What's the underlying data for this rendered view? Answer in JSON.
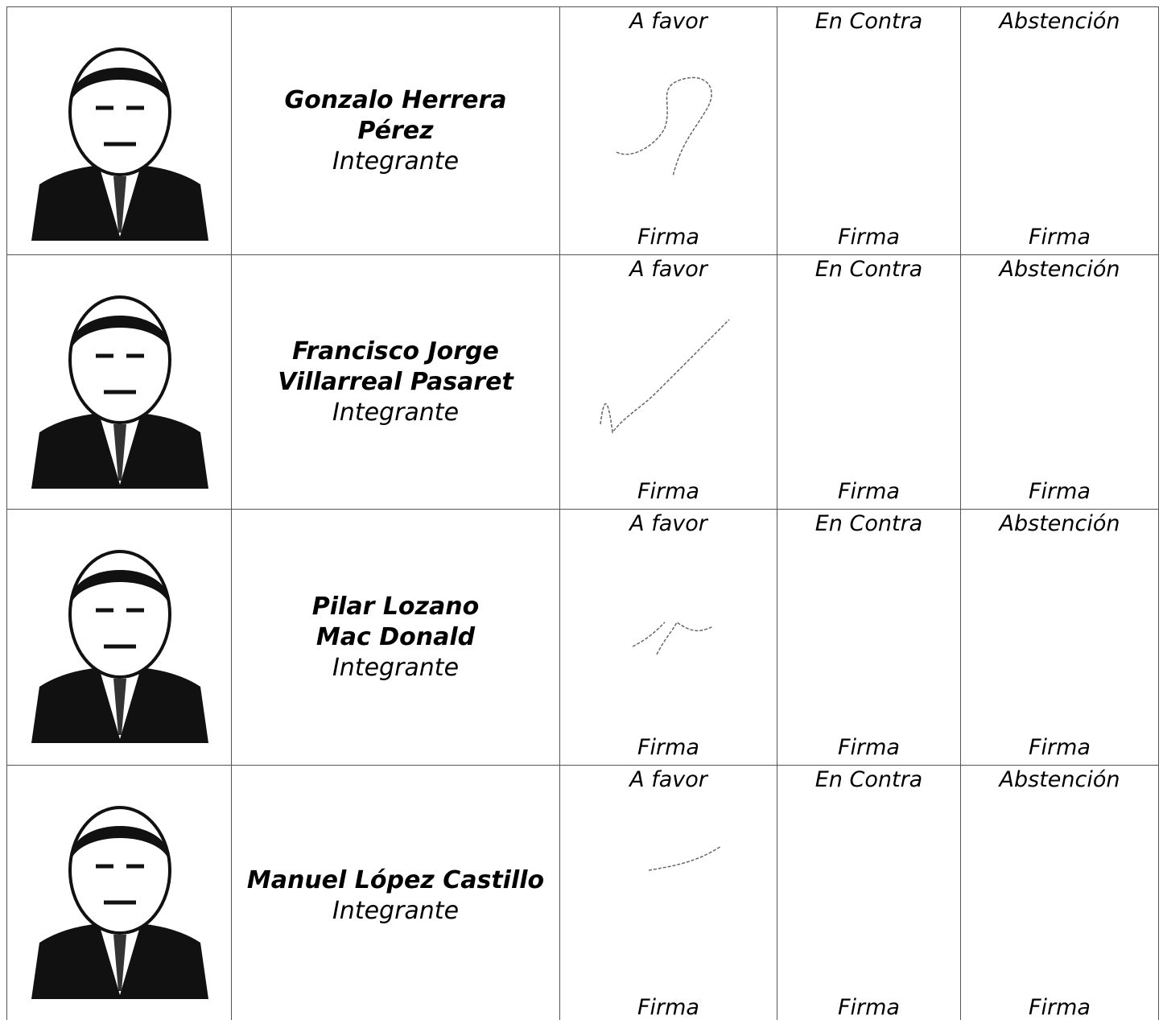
{
  "rows": [
    {
      "name": [
        "Gonzalo Herrera",
        "Pérez"
      ],
      "role": "Integrante",
      "votes": [
        {
          "label": "A favor",
          "sign": "Firma"
        },
        {
          "label": "En Contra",
          "sign": "Firma"
        },
        {
          "label": "Abstención",
          "sign": "Firma"
        }
      ]
    },
    {
      "name": [
        "Francisco Jorge",
        "Villarreal Pasaret"
      ],
      "role": "Integrante",
      "votes": [
        {
          "label": "A favor",
          "sign": "Firma"
        },
        {
          "label": "En Contra",
          "sign": "Firma"
        },
        {
          "label": "Abstención",
          "sign": "Firma"
        }
      ]
    },
    {
      "name": [
        "Pilar Lozano",
        "Mac Donald"
      ],
      "role": "Integrante",
      "votes": [
        {
          "label": "A favor",
          "sign": "Firma"
        },
        {
          "label": "En Contra",
          "sign": "Firma"
        },
        {
          "label": "Abstención",
          "sign": "Firma"
        }
      ]
    },
    {
      "name": [
        "Manuel López Castillo"
      ],
      "role": "Integrante",
      "votes": [
        {
          "label": "A favor",
          "sign": "Firma"
        },
        {
          "label": "En Contra",
          "sign": "Firma"
        },
        {
          "label": "Abstención",
          "sign": "Firma"
        }
      ]
    }
  ]
}
